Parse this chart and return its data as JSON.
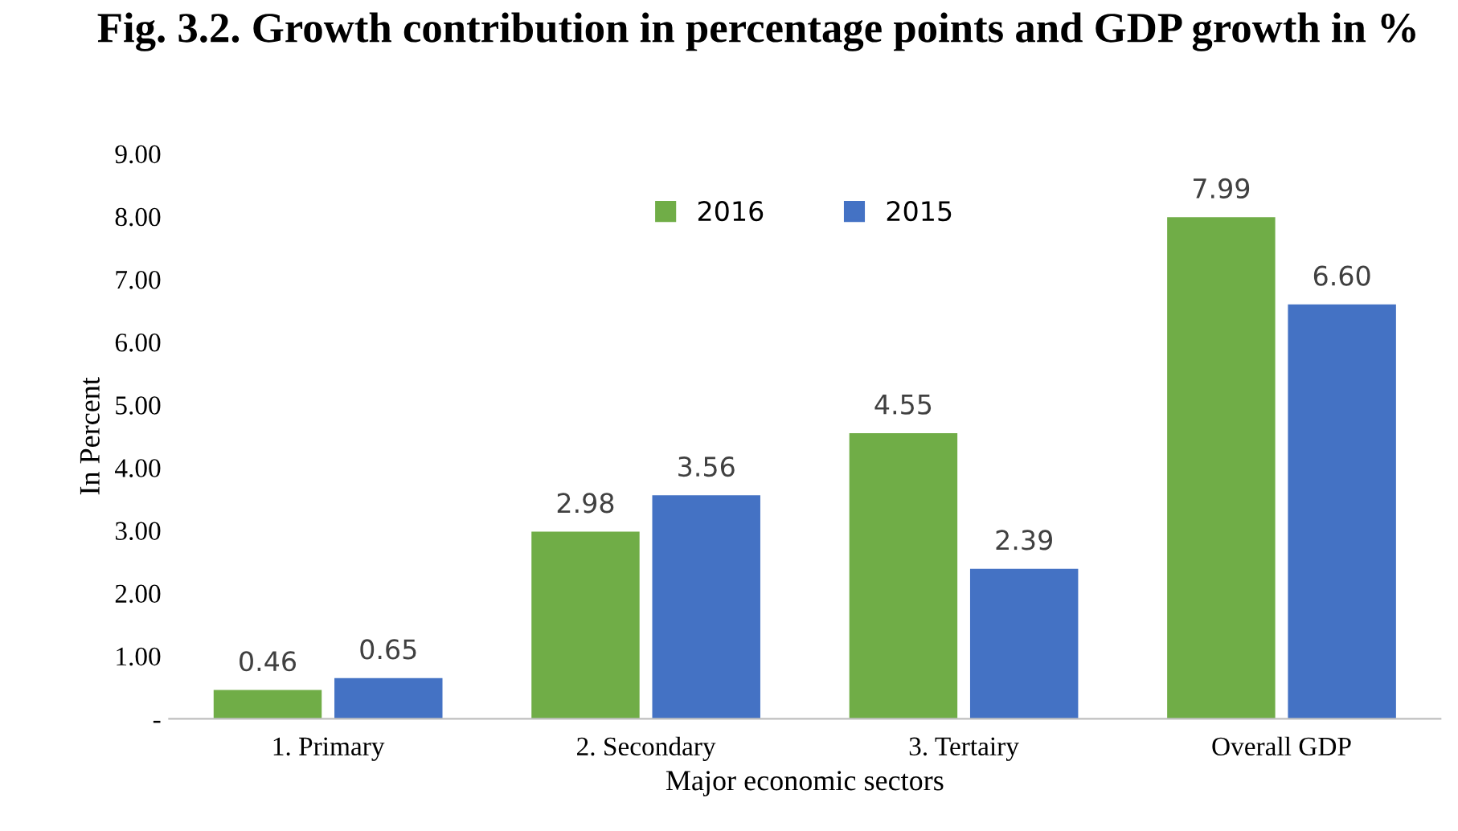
{
  "chart_data": {
    "type": "bar",
    "title": "Fig. 3.2. Growth contribution in percentage points and GDP growth in %",
    "xlabel": "Major economic sectors",
    "ylabel": "In Percent",
    "categories": [
      "1. Primary",
      "2. Secondary",
      "3. Tertairy",
      "Overall GDP"
    ],
    "series": [
      {
        "name": "2016",
        "color": "#70ad47",
        "values": [
          0.46,
          2.98,
          4.55,
          7.99
        ],
        "value_labels": [
          "0.46",
          "2.98",
          "4.55",
          "7.99"
        ]
      },
      {
        "name": "2015",
        "color": "#4472c4",
        "values": [
          0.65,
          3.56,
          2.39,
          6.6
        ],
        "value_labels": [
          "0.65",
          "3.56",
          "2.39",
          "6.60"
        ]
      }
    ],
    "ylim": [
      0,
      9
    ],
    "yticks": [
      {
        "value": 0,
        "label": "-"
      },
      {
        "value": 1,
        "label": "1.00"
      },
      {
        "value": 2,
        "label": "2.00"
      },
      {
        "value": 3,
        "label": "3.00"
      },
      {
        "value": 4,
        "label": "4.00"
      },
      {
        "value": 5,
        "label": "5.00"
      },
      {
        "value": 6,
        "label": "6.00"
      },
      {
        "value": 7,
        "label": "7.00"
      },
      {
        "value": 8,
        "label": "8.00"
      },
      {
        "value": 9,
        "label": "9.00"
      }
    ],
    "grid": false,
    "legend": "top"
  }
}
